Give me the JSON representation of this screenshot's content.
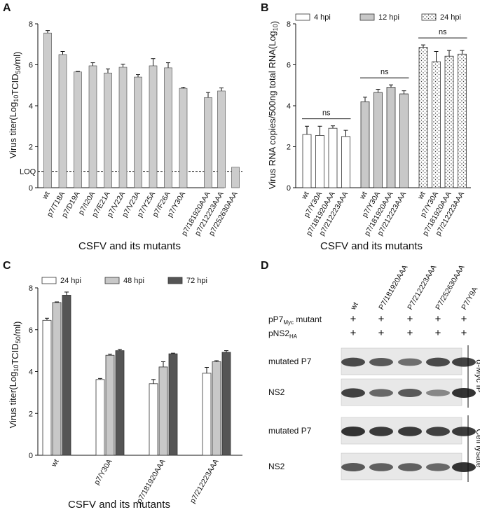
{
  "figure": {
    "panels": [
      "A",
      "B",
      "C",
      "D"
    ]
  },
  "chart_data": [
    {
      "panel": "A",
      "type": "bar",
      "ylabel": "Virus titer(Log10TCID50/ml)",
      "xlabel": "CSFV and its mutants",
      "ylim": [
        0,
        8
      ],
      "yticks": [
        "0",
        "2",
        "4",
        "6",
        "8"
      ],
      "reference_line": {
        "label": "LOQ",
        "value": 0.8
      },
      "categories": [
        "wt",
        "p7/T18A",
        "p7/D19A",
        "p7/I20A",
        "p7/E21A",
        "p7/V22A",
        "p7/V23A",
        "p7/Y25A",
        "p7/F26A",
        "p7/Y30A",
        "p7/181920AAA",
        "p7/212223AAA",
        "p7/252630AAA"
      ],
      "values": [
        7.55,
        6.5,
        5.65,
        5.95,
        5.6,
        5.88,
        5.4,
        5.95,
        5.85,
        4.85,
        4.4,
        4.72,
        1.0
      ],
      "errors": [
        0.12,
        0.15,
        0.03,
        0.15,
        0.2,
        0.15,
        0.12,
        0.35,
        0.25,
        0.05,
        0.25,
        0.15,
        0.0
      ],
      "color": "#cccccc"
    },
    {
      "panel": "B",
      "type": "bar",
      "ylabel": "Virus RNA copies/500ng total RNA(Log10)",
      "xlabel": "CSFV and its mutants",
      "ylim": [
        0,
        8
      ],
      "yticks": [
        "0",
        "2",
        "4",
        "6",
        "8"
      ],
      "groups": [
        {
          "name": "4 hpi",
          "pattern": "white",
          "categories": [
            "wt",
            "p7/Y30A",
            "p7/181920AAA",
            "p7/212223AAA"
          ],
          "values": [
            2.6,
            2.55,
            2.9,
            2.5
          ],
          "errors": [
            0.4,
            0.45,
            0.12,
            0.3
          ],
          "annotation": "ns"
        },
        {
          "name": "12 hpi",
          "pattern": "gray",
          "categories": [
            "wt",
            "p7/Y30A",
            "p7/181920AAA",
            "p7/212223AAA"
          ],
          "values": [
            4.2,
            4.65,
            4.9,
            4.58
          ],
          "errors": [
            0.22,
            0.15,
            0.12,
            0.15
          ],
          "annotation": "ns"
        },
        {
          "name": "24 hpi",
          "pattern": "dotted",
          "categories": [
            "wt",
            "p7/Y30A",
            "p7/181920AAA",
            "p7/212223AAA"
          ],
          "values": [
            6.85,
            6.15,
            6.42,
            6.52
          ],
          "errors": [
            0.12,
            0.5,
            0.28,
            0.18
          ],
          "annotation": "ns"
        }
      ],
      "legend": [
        "4 hpi",
        "12 hpi",
        "24 hpi"
      ]
    },
    {
      "panel": "C",
      "type": "bar",
      "ylabel": "Virus titer(Log10TCID50/ml)",
      "xlabel": "CSFV and its mutants",
      "ylim": [
        0,
        8
      ],
      "yticks": [
        "0",
        "2",
        "4",
        "6",
        "8"
      ],
      "categories": [
        "wt",
        "p7/Y30A",
        "p7/181920AAA",
        "p7/212223AAA"
      ],
      "series": [
        {
          "name": "24 hpi",
          "color": "#ffffff",
          "values": [
            6.45,
            3.62,
            3.42,
            3.92
          ],
          "errors": [
            0.1,
            0.05,
            0.2,
            0.28
          ]
        },
        {
          "name": "48 hpi",
          "color": "#c8c8c8",
          "values": [
            7.3,
            4.78,
            4.22,
            4.47
          ],
          "errors": [
            0.03,
            0.05,
            0.25,
            0.05
          ]
        },
        {
          "name": "72 hpi",
          "color": "#555555",
          "values": [
            7.65,
            5.0,
            4.85,
            4.92
          ],
          "errors": [
            0.15,
            0.06,
            0.03,
            0.08
          ]
        }
      ]
    },
    {
      "panel": "D",
      "type": "table",
      "lanes": [
        "wt",
        "P7/181920AAA",
        "P7/212223AAA",
        "P7/252630AAA",
        "P7/Y9A"
      ],
      "row_labels": [
        {
          "label": "pP7",
          "sub": "Myc",
          "tail": " mutant",
          "marks": [
            "+",
            "+",
            "+",
            "+",
            "+"
          ]
        },
        {
          "label": "pNS2",
          "sub": "HA",
          "tail": "",
          "marks": [
            "+",
            "+",
            "+",
            "+",
            "+"
          ]
        }
      ],
      "blots": [
        {
          "label": "mutated P7",
          "section": "IP",
          "intensity": [
            0.85,
            0.75,
            0.6,
            0.85,
            0.9
          ]
        },
        {
          "label": "NS2",
          "section": "IP",
          "intensity": [
            0.9,
            0.65,
            0.75,
            0.45,
            1.0
          ]
        },
        {
          "label": "mutated P7",
          "section": "Lysate",
          "intensity": [
            1.0,
            0.95,
            0.95,
            0.9,
            0.95
          ]
        },
        {
          "label": "NS2",
          "section": "Lysate",
          "intensity": [
            0.75,
            0.7,
            0.7,
            0.65,
            1.0
          ]
        }
      ],
      "side_labels": {
        "ip": "α-Myc IP",
        "lysate": "Cell lysate"
      }
    }
  ]
}
